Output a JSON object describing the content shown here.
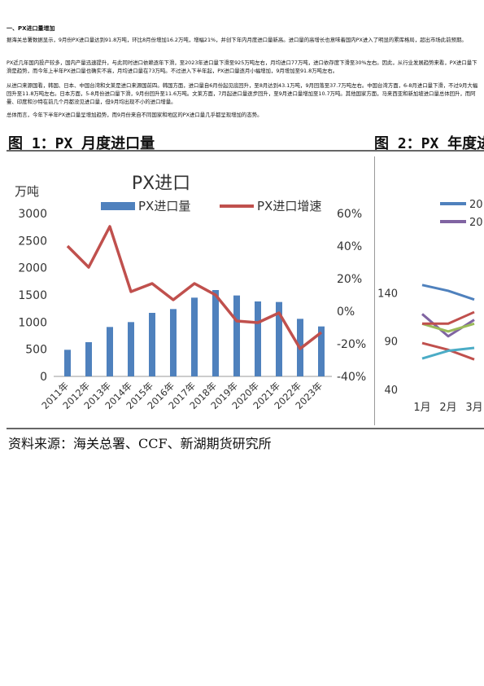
{
  "section_heading": "一、PX进口量增加",
  "paragraphs": [
    "据海关总署数据显示，9月份PX进口量达到91.8万吨，环比8月份增加16.2万吨，增幅21%，并创下年内月度进口量新高。进口量的高增长也意味着国内PX进入了明显的累库格局，超出市场此前预期。",
    "PX近几年国内投产较多，国内产量迅速提升，与此同时进口依赖逐年下滑，至2023年进口量下滑至925万吨左右，月均进口77万吨，进口依存度下滑至30%左右。因此，从行业发展趋势来看，PX进口量下滑是趋势，而今年上半年PX进口量也确实不高，月均进口量在73万吨。不过进入下半年起，PX进口量逐月小幅增加，9月增加至91.8万吨左右。",
    "从进口来源国看，韩国、日本、中国台湾和文莱是进口来源国前四。韩国方面，进口量自6月份起见底回升，至8月达到43.1万吨，9月回落至37.7万吨左右。中国台湾方面，6-8月进口量下滑，不过9月大幅回升至11.8万吨左右。日本方面，5-8月份进口量下滑，9月份回升至11.6万吨。文莱方面，7月起进口量逐步回升，至9月进口量增加至10.7万吨。其他国家方面，马来西亚和新加坡进口量总体回升，而阿曼、印度和沙特在前几个月都没见进口量，但9月均出现不小的进口增量。",
    "总体而言，今年下半年PX进口量呈增加趋势，而9月份来自不同国家和地区的PX进口量几乎都呈现增加的态势。"
  ],
  "figure1_title": "图 1：PX 月度进口量",
  "figure2_title": "图 2：PX 年度进",
  "source_note": "资料来源：海关总署、CCF、新湖期货研究所",
  "chart_data": [
    {
      "type": "bar",
      "title": "PX进口",
      "ylabel": "万吨",
      "categories": [
        "2011年",
        "2012年",
        "2013年",
        "2014年",
        "2015年",
        "2016年",
        "2017年",
        "2018年",
        "2019年",
        "2020年",
        "2021年",
        "2022年",
        "2023年"
      ],
      "series": [
        {
          "name": "PX进口量",
          "type": "bar",
          "axis": "left",
          "color": "#4f81bd",
          "values": [
            490,
            630,
            910,
            1000,
            1170,
            1240,
            1450,
            1590,
            1490,
            1380,
            1370,
            1060,
            920
          ]
        },
        {
          "name": "PX进口增速",
          "type": "line",
          "axis": "right",
          "color": "#c0504d",
          "values": [
            0.4,
            0.27,
            0.52,
            0.12,
            0.17,
            0.07,
            0.17,
            0.1,
            -0.06,
            -0.07,
            -0.01,
            -0.23,
            -0.13
          ]
        }
      ],
      "y_left": {
        "min": 0,
        "max": 3000,
        "ticks": [
          "0",
          "500",
          "1000",
          "1500",
          "2000",
          "2500",
          "3000"
        ]
      },
      "y_right": {
        "min": -0.4,
        "max": 0.6,
        "ticks": [
          "-40%",
          "-20%",
          "0%",
          "20%",
          "40%",
          "60%"
        ]
      },
      "legend_position": "top"
    },
    {
      "type": "line",
      "categories": [
        "1月",
        "2月",
        "3月"
      ],
      "y_ticks": [
        "40",
        "90",
        "140"
      ],
      "y_range": [
        40,
        190
      ],
      "legend_partial": [
        "20",
        "20"
      ],
      "series": [
        {
          "color": "#4f81bd",
          "values": [
            148,
            142,
            133
          ]
        },
        {
          "color": "#8064a2",
          "values": [
            118,
            95,
            112
          ]
        },
        {
          "color": "#9bbb59",
          "values": [
            108,
            100,
            108
          ]
        },
        {
          "color": "#c0504d",
          "values": [
            88,
            81,
            71
          ]
        },
        {
          "color": "#c0504d",
          "values": [
            108,
            108,
            120
          ]
        },
        {
          "color": "#4bacc6",
          "values": [
            72,
            80,
            83
          ]
        }
      ],
      "legend_position": "top-right"
    }
  ]
}
